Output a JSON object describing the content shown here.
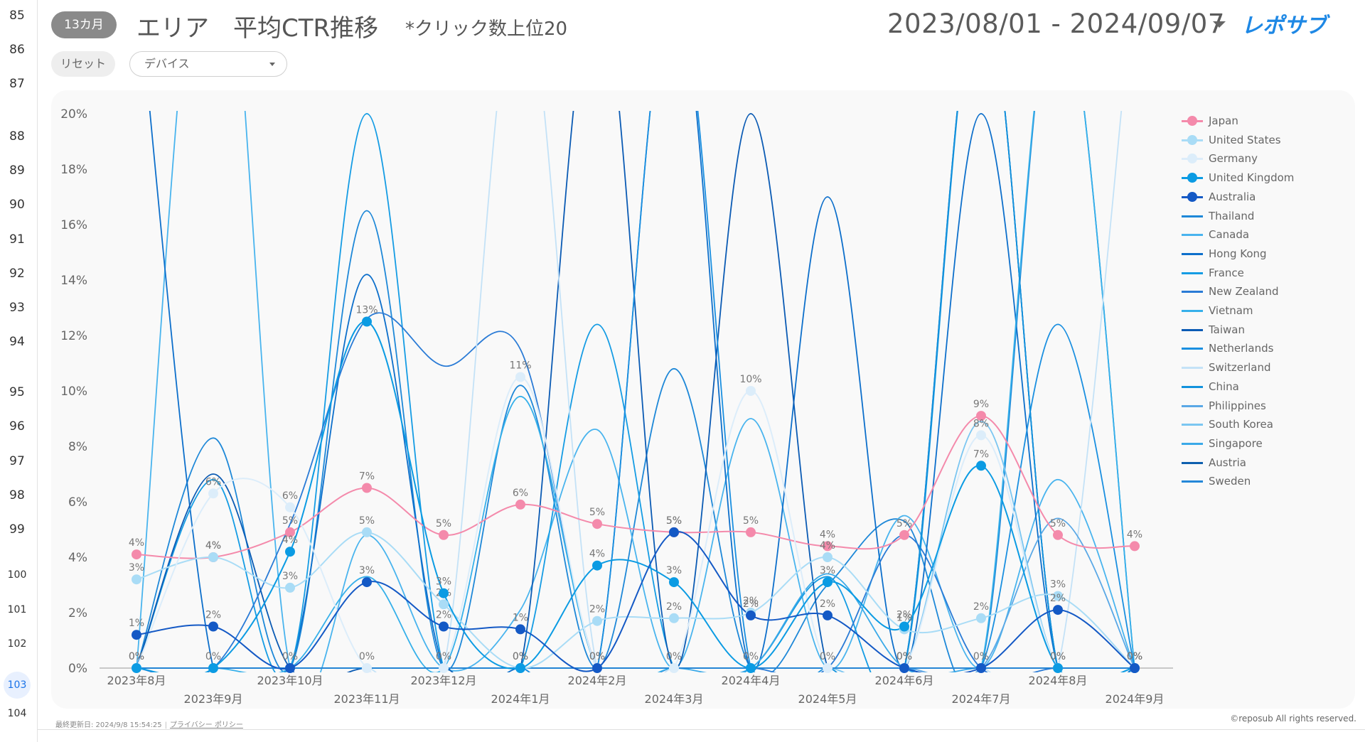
{
  "sheet": {
    "row_numbers": [
      "85",
      "86",
      "87",
      "88",
      "89",
      "90",
      "91",
      "92",
      "93",
      "94",
      "95",
      "96",
      "97",
      "98",
      "99",
      "100",
      "101",
      "102",
      "103",
      "104"
    ],
    "active_row": "103"
  },
  "header": {
    "badge": "13カ月",
    "title": "エリア　平均CTR推移",
    "subtitle": "*クリック数上位20",
    "date_range": "2023/08/01 - 2024/09/07",
    "logo_text": "レポサブ"
  },
  "controls": {
    "reset_label": "リセット",
    "device_value": "デバイス"
  },
  "colors": {
    "japan": "#f48aab",
    "united_states": "#a9dcf6",
    "germany": "#dcedfa",
    "united_kingdom": "#0b9be3",
    "australia": "#1459c5",
    "blues": [
      "#1e88d8",
      "#49b4ee",
      "#0d6fcb",
      "#159ce4",
      "#2a7bd6",
      "#36b0ea",
      "#0b5bb4",
      "#1a8fe0",
      "#c4e2f7",
      "#1292dd",
      "#5aa8e6",
      "#7bc6f1",
      "#3aa9e8",
      "#0e5fae",
      "#2487d8"
    ]
  },
  "chart_data": {
    "type": "line",
    "title": "エリア　平均CTR推移",
    "ylim": [
      0,
      20
    ],
    "y_ticks": [
      "0%",
      "2%",
      "4%",
      "6%",
      "8%",
      "10%",
      "12%",
      "14%",
      "16%",
      "18%",
      "20%"
    ],
    "categories": [
      "2023年8月",
      "2023年9月",
      "2023年10月",
      "2023年11月",
      "2023年12月",
      "2024年1月",
      "2024年2月",
      "2024年3月",
      "2024年4月",
      "2024年5月",
      "2024年6月",
      "2024年7月",
      "2024年8月",
      "2024年9月"
    ],
    "legend_position": "right",
    "grid": false,
    "series": [
      {
        "name": "Japan",
        "marker": true,
        "labels": true,
        "values": [
          4.1,
          4.0,
          4.9,
          6.5,
          4.8,
          5.9,
          5.2,
          4.9,
          4.9,
          4.4,
          4.8,
          9.1,
          4.8,
          4.4
        ]
      },
      {
        "name": "United States",
        "marker": true,
        "labels": true,
        "values": [
          3.2,
          4.0,
          2.9,
          4.9,
          2.3,
          0.0,
          1.7,
          1.8,
          2.0,
          4.0,
          1.4,
          1.8,
          2.6,
          0.0
        ]
      },
      {
        "name": "Germany",
        "marker": true,
        "labels": true,
        "values": [
          0.0,
          6.3,
          5.8,
          0.0,
          0.0,
          10.5,
          0.0,
          0.0,
          10.0,
          0.0,
          0.0,
          8.4,
          0.0,
          0.0
        ]
      },
      {
        "name": "United Kingdom",
        "marker": true,
        "labels": true,
        "values": [
          0.0,
          0.0,
          4.2,
          12.5,
          2.7,
          0.0,
          3.7,
          3.1,
          0.0,
          3.1,
          1.5,
          7.3,
          0.0,
          0.0
        ]
      },
      {
        "name": "Australia",
        "marker": true,
        "labels": true,
        "values": [
          1.2,
          1.5,
          0.0,
          3.1,
          1.5,
          1.4,
          0.0,
          4.9,
          1.9,
          1.9,
          0.0,
          0.0,
          2.1,
          0.0
        ]
      },
      {
        "name": "Thailand",
        "values": [
          0.0,
          8.3,
          0.0,
          16.5,
          0.0,
          10.2,
          0.0,
          10.8,
          0.0,
          3.0,
          5.3,
          0.0,
          25,
          0.0
        ]
      },
      {
        "name": "Canada",
        "values": [
          0.0,
          30,
          0.0,
          4.8,
          0.0,
          2.1,
          8.6,
          0.0,
          9.0,
          0.0,
          5.5,
          0.0,
          6.8,
          0.0
        ]
      },
      {
        "name": "Hong Kong",
        "values": [
          25,
          0.0,
          0.0,
          14.2,
          0.0,
          0.0,
          0.0,
          25,
          0.0,
          17.0,
          0.0,
          20.0,
          0.0,
          0.0
        ]
      },
      {
        "name": "France",
        "values": [
          0.0,
          6.8,
          0.0,
          20.0,
          0.0,
          0.0,
          12.4,
          0.0,
          0.0,
          3.3,
          0.0,
          25,
          0.0,
          0.0
        ]
      },
      {
        "name": "New Zealand",
        "values": [
          0.0,
          0.0,
          5.2,
          12.6,
          10.9,
          11.5,
          0.0,
          0.0,
          0.0,
          0.0,
          4.8,
          0.0,
          0.0,
          0.0
        ]
      },
      {
        "name": "Vietnam",
        "values": [
          0.0,
          0.0,
          0.0,
          3.3,
          0.0,
          9.8,
          0.0,
          0.0,
          0.0,
          0.0,
          0.0,
          0.0,
          25,
          0.0
        ]
      },
      {
        "name": "Taiwan",
        "values": [
          0.0,
          7.0,
          0.0,
          0.0,
          0.0,
          0.0,
          25,
          0.0,
          20.0,
          0.0,
          0.0,
          25,
          0.0,
          0.0
        ]
      },
      {
        "name": "Netherlands",
        "values": [
          0.0,
          0.0,
          0.0,
          0.0,
          0.0,
          0.0,
          0.0,
          25,
          0.0,
          0.0,
          0.0,
          0.0,
          12.4,
          0.0
        ]
      },
      {
        "name": "Switzerland",
        "values": [
          0.0,
          0.0,
          0.0,
          0.0,
          0.0,
          25,
          0.0,
          0.0,
          0.0,
          0.0,
          0.0,
          0.0,
          0.0,
          25
        ]
      },
      {
        "name": "China",
        "values": [
          0.0,
          0.0,
          0.0,
          0.0,
          0.0,
          0.0,
          0.0,
          0.0,
          0.0,
          0.0,
          0.0,
          25,
          0.0,
          0.0
        ]
      },
      {
        "name": "Philippines",
        "values": [
          0.0,
          0.0,
          0.0,
          0.0,
          0.0,
          0.0,
          0.0,
          0.0,
          0.0,
          0.0,
          0.0,
          0.0,
          5.4,
          0.0
        ]
      },
      {
        "name": "South Korea",
        "values": [
          0.0,
          0.0,
          0.0,
          0.0,
          0.0,
          0.0,
          0.0,
          0.0,
          0.0,
          0.0,
          0.0,
          8.9,
          0.0,
          0.0
        ]
      },
      {
        "name": "Singapore",
        "values": [
          0.0,
          0.0,
          0.0,
          0.0,
          0.0,
          0.0,
          0.0,
          0.0,
          0.0,
          3.4,
          0.0,
          0.0,
          0.0,
          0.0
        ]
      },
      {
        "name": "Austria",
        "values": [
          0.0,
          0.0,
          0.0,
          0.0,
          0.0,
          0.0,
          0.0,
          0.0,
          0.0,
          0.0,
          0.0,
          0.0,
          0.0,
          0.0
        ]
      },
      {
        "name": "Sweden",
        "values": [
          0.0,
          0.0,
          0.0,
          0.0,
          0.0,
          0.0,
          0.0,
          0.0,
          0.0,
          0.0,
          0.0,
          0.0,
          0.0,
          0.0
        ]
      }
    ]
  },
  "footer": {
    "updated": "最終更新日: 2024/9/8 15:54:25",
    "privacy": "プライバシー ポリシー",
    "copyright": "©reposub All rights reserved."
  }
}
